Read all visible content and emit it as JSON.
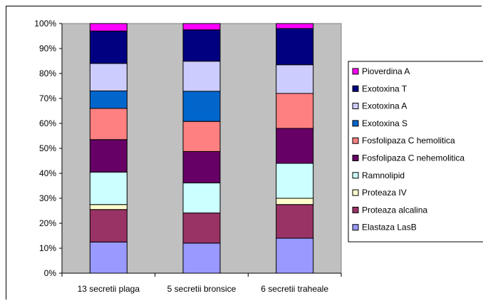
{
  "chart_data": {
    "type": "bar",
    "stacked": true,
    "normalized_percent": true,
    "categories": [
      "13 secretii plaga",
      "5 secretii bronsice",
      "6 secretii traheale"
    ],
    "y_ticks": [
      "0%",
      "10%",
      "20%",
      "30%",
      "40%",
      "50%",
      "60%",
      "70%",
      "80%",
      "90%",
      "100%"
    ],
    "ylim": [
      0,
      100
    ],
    "grid": false,
    "plot_background": "#c0c0c0",
    "legend_position": "right",
    "series": [
      {
        "name": "Elastaza LasB",
        "color": "#9999ff",
        "values": [
          12.5,
          12,
          14
        ]
      },
      {
        "name": "Proteaza alcalina",
        "color": "#993366",
        "values": [
          13,
          12,
          13.5
        ]
      },
      {
        "name": "Proteaza IV",
        "color": "#ffffcc",
        "values": [
          2,
          0,
          2.5
        ]
      },
      {
        "name": "Ramnolipid",
        "color": "#ccffff",
        "values": [
          13,
          12,
          14
        ]
      },
      {
        "name": "Fosfolipaza C nehemolitica",
        "color": "#660066",
        "values": [
          13,
          12.5,
          14
        ]
      },
      {
        "name": "Fosfolipaza C hemolitica",
        "color": "#ff8080",
        "values": [
          12.5,
          12,
          14
        ]
      },
      {
        "name": "Exotoxina S",
        "color": "#0066cc",
        "values": [
          7,
          12,
          0
        ]
      },
      {
        "name": "Exotoxina A",
        "color": "#ccccff",
        "values": [
          11,
          12,
          11.5
        ]
      },
      {
        "name": "Exotoxina T",
        "color": "#000080",
        "values": [
          13,
          12.5,
          14.5
        ]
      },
      {
        "name": "Pioverdina A",
        "color": "#ff00ff",
        "values": [
          3,
          2.5,
          2
        ]
      }
    ]
  }
}
